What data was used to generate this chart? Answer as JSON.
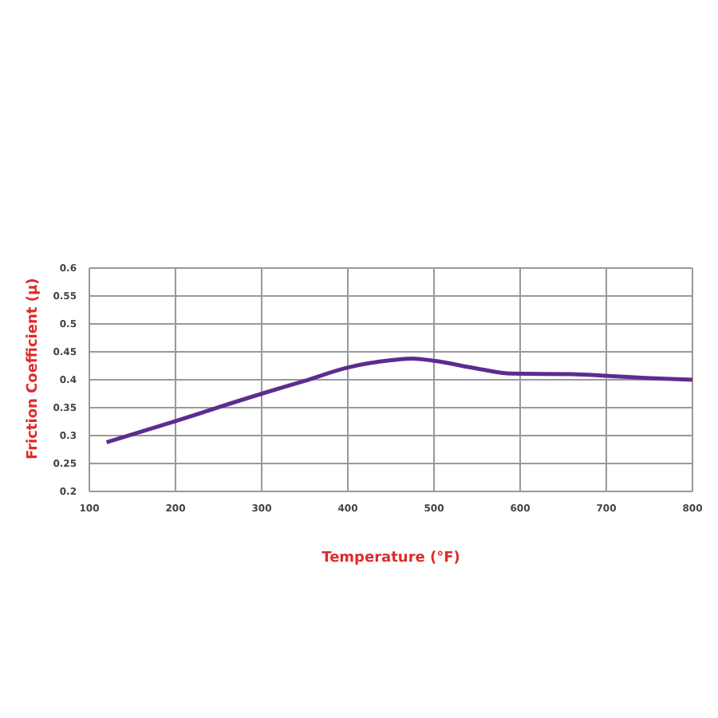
{
  "chart_data": {
    "type": "line",
    "xlabel": "Temperature (°F)",
    "ylabel": "Friction Coefficient (μ)",
    "series": [
      {
        "color": "#5b2d8e",
        "x": [
          120,
          200,
          300,
          350,
          400,
          450,
          475,
          500,
          550,
          590,
          660,
          700,
          750,
          800
        ],
        "values": [
          0.288,
          0.326,
          0.375,
          0.398,
          0.422,
          0.435,
          0.438,
          0.434,
          0.42,
          0.411,
          0.41,
          0.407,
          0.403,
          0.4
        ]
      }
    ],
    "xlim": [
      100,
      800
    ],
    "xticks": [
      100,
      200,
      300,
      400,
      500,
      600,
      700,
      800
    ],
    "ylim": [
      0.2,
      0.6
    ],
    "yticks": [
      0.2,
      0.25,
      0.3,
      0.35,
      0.4,
      0.45,
      0.5,
      0.55,
      0.6
    ],
    "grid": true,
    "marker": "none",
    "line_style": "solid"
  }
}
